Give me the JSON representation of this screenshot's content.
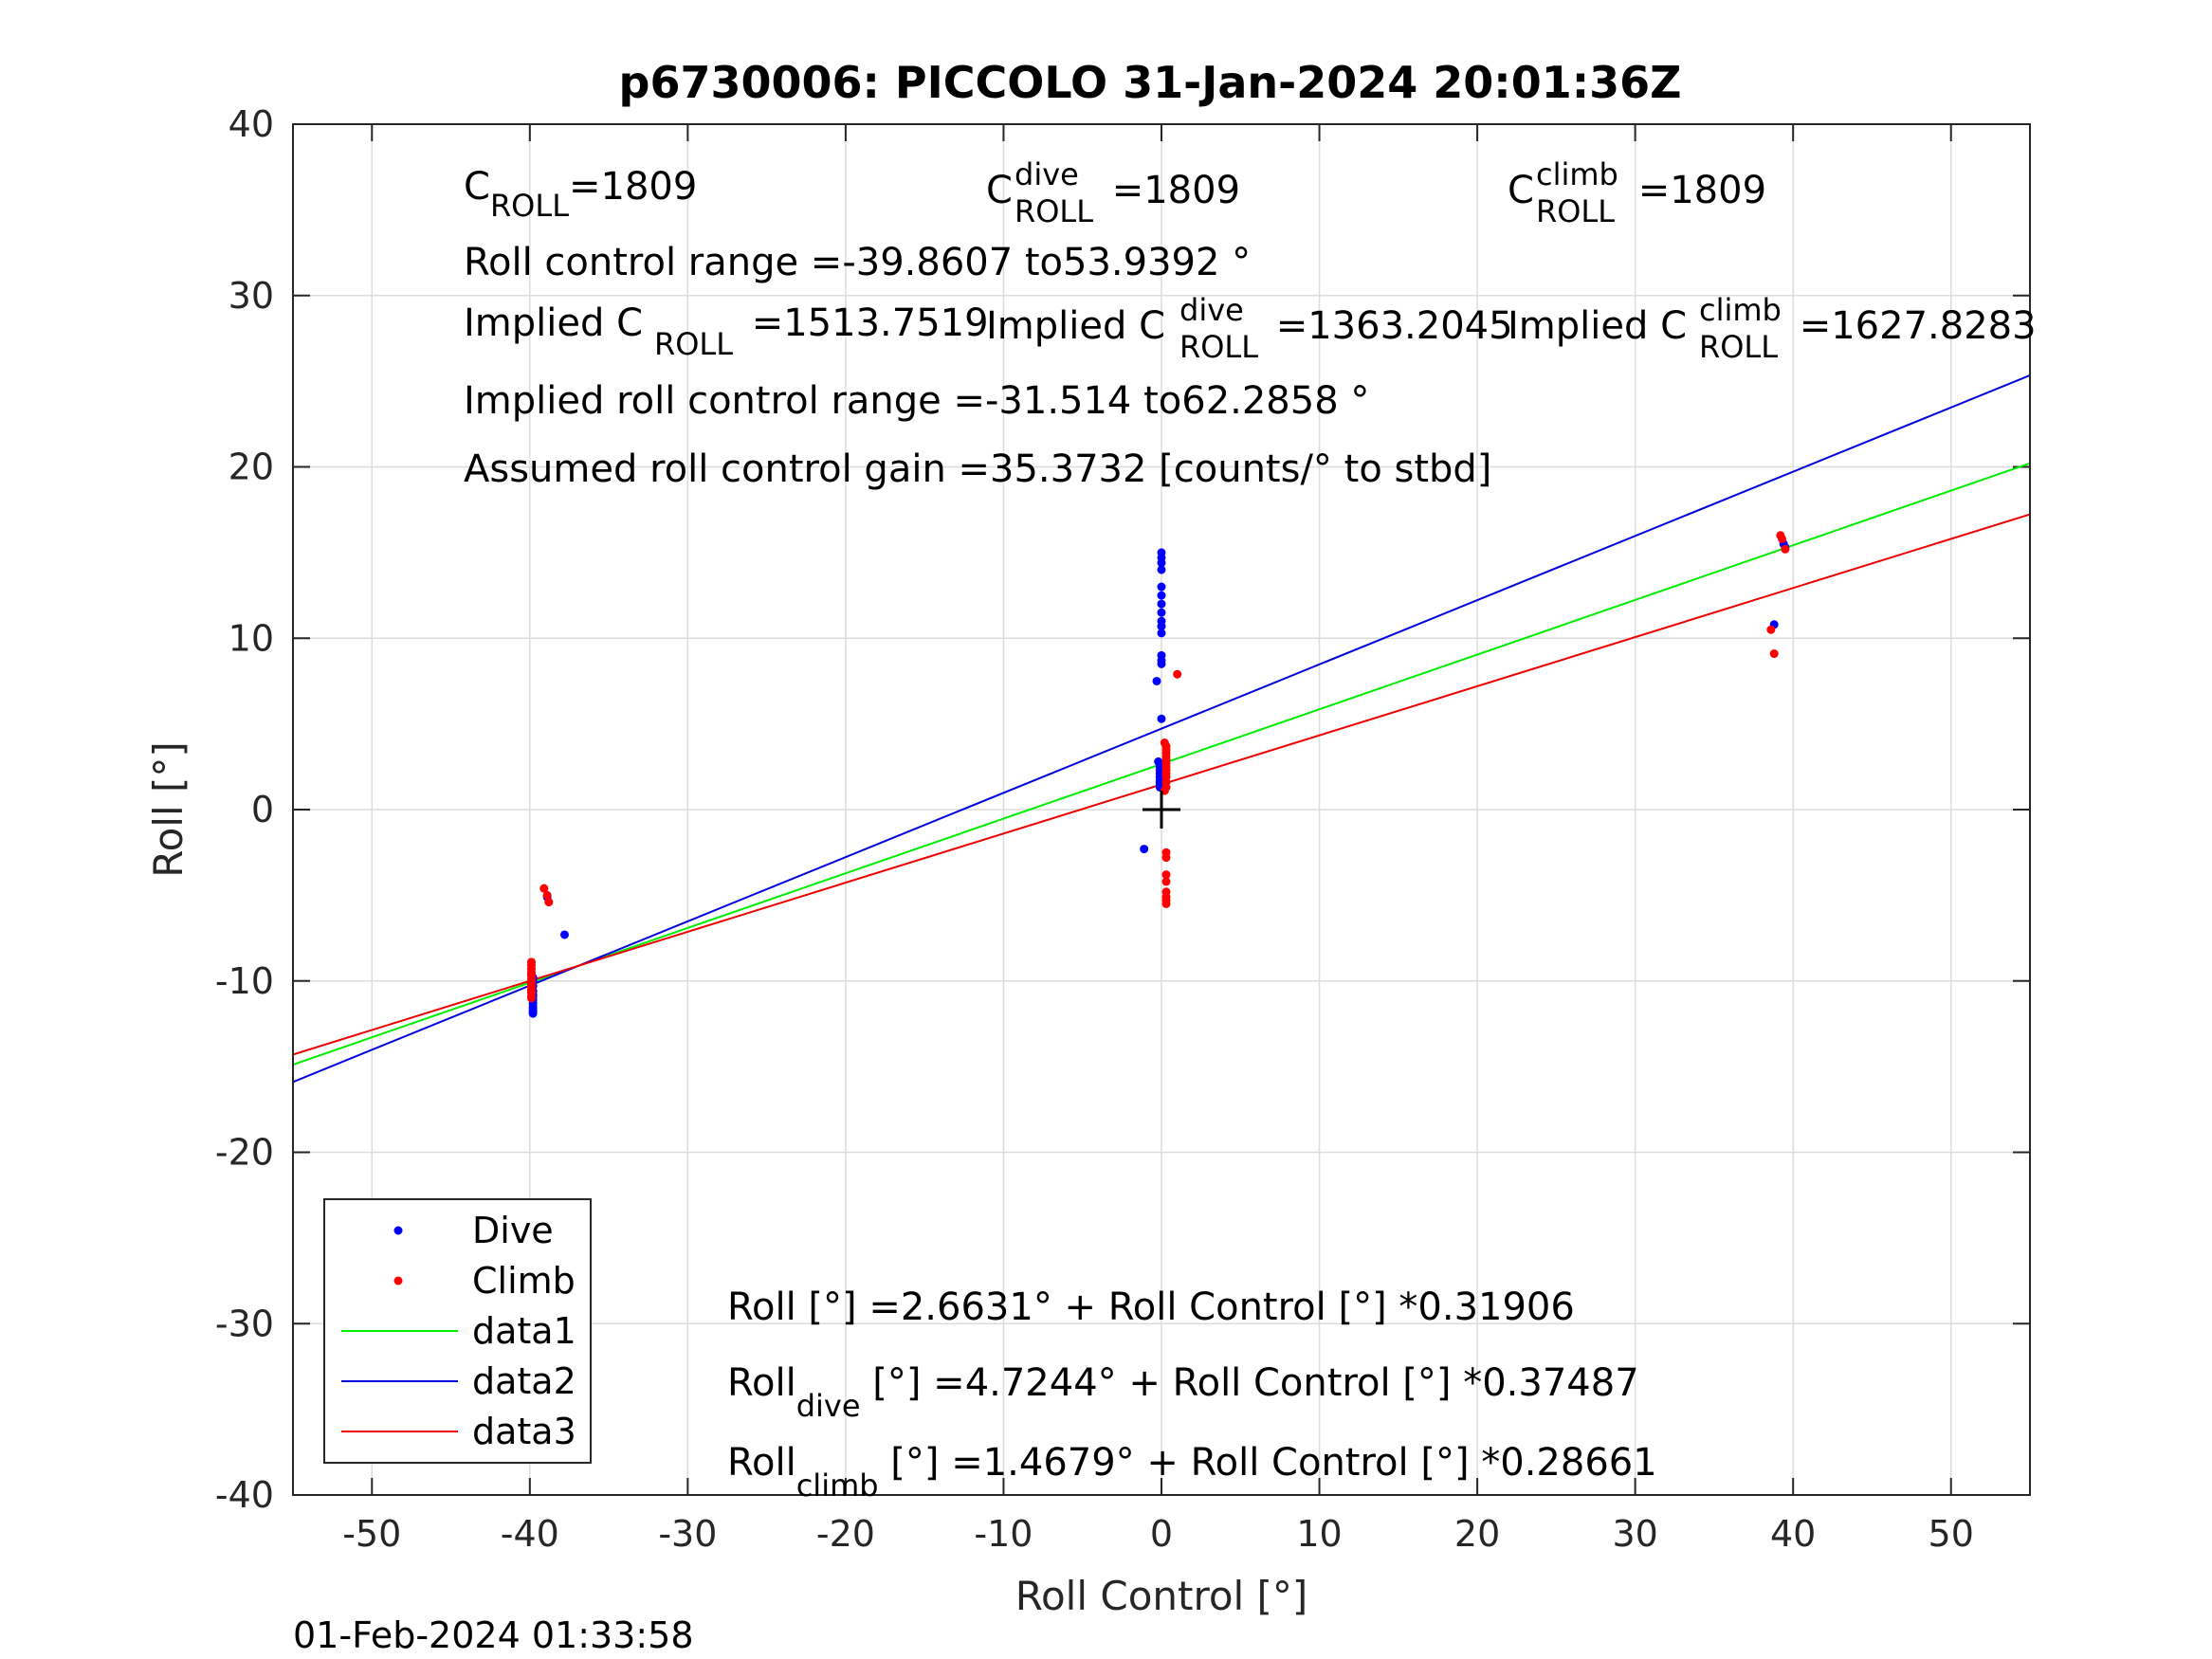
{
  "chart_data": {
    "type": "scatter",
    "title": "p6730006: PICCOLO 31-Jan-2024 20:01:36Z",
    "xlabel": "Roll Control [°]",
    "ylabel": "Roll [°]",
    "xlim": [
      -55,
      55
    ],
    "ylim": [
      -40,
      40
    ],
    "xticks": [
      -50,
      -40,
      -30,
      -20,
      -10,
      0,
      10,
      20,
      30,
      40,
      50
    ],
    "yticks": [
      -40,
      -30,
      -20,
      -10,
      0,
      10,
      20,
      30,
      40
    ],
    "grid": true,
    "legend_placement": "bottom-left",
    "series": [
      {
        "name": "Dive",
        "kind": "points",
        "color": "#0000ff",
        "x": [
          -39.8,
          -39.8,
          -39.8,
          -39.8,
          -39.8,
          -39.8,
          -39.8,
          -39.8,
          -39.8,
          -39.8,
          -39.8,
          -39.8,
          -39.8,
          -38.9,
          -37.8,
          0,
          0,
          0,
          0,
          0,
          0,
          0,
          0,
          0,
          0,
          0,
          0,
          0,
          0,
          -0.3,
          0,
          -0.2,
          -0.1,
          -0.1,
          -0.1,
          -0.1,
          -0.1,
          -0.1,
          -0.1,
          -0.1,
          -0.1,
          -1.1,
          38.8,
          39.4,
          39.5
        ],
        "y": [
          -10.0,
          -10.3,
          -10.6,
          -10.9,
          -11.1,
          -11.3,
          -11.5,
          -11.6,
          -11.7,
          -11.8,
          -11.9,
          -10.8,
          -9.8,
          -5.1,
          -7.3,
          15.0,
          14.7,
          14.4,
          14.0,
          13.0,
          12.5,
          12.0,
          11.5,
          11.0,
          10.7,
          10.3,
          9.0,
          8.7,
          8.5,
          7.5,
          5.3,
          2.8,
          2.5,
          2.3,
          2.1,
          1.9,
          1.7,
          1.6,
          1.5,
          1.4,
          1.3,
          -2.3,
          10.8,
          15.5,
          15.3
        ]
      },
      {
        "name": "Climb",
        "kind": "points",
        "color": "#ff0000",
        "x": [
          -39.9,
          -39.9,
          -39.9,
          -39.9,
          -39.9,
          -39.9,
          -39.9,
          -39.9,
          -39.9,
          -39.9,
          -39.9,
          -39.9,
          -39.9,
          -39.9,
          -39.9,
          -39.1,
          -38.9,
          -38.8,
          0.2,
          0.3,
          0.3,
          0.3,
          0.3,
          0.3,
          0.3,
          0.3,
          0.3,
          0.3,
          0.3,
          0.3,
          0.3,
          0.2,
          0.3,
          0.3,
          0.3,
          0.3,
          0.3,
          0.3,
          0.3,
          0.3,
          1.0,
          38.6,
          38.8,
          39.2,
          39.3,
          39.5
        ],
        "y": [
          -8.9,
          -9.1,
          -9.3,
          -9.5,
          -9.7,
          -9.9,
          -10.1,
          -10.3,
          -10.5,
          -10.7,
          -10.9,
          -11.0,
          -9.6,
          -10.2,
          -10.6,
          -4.6,
          -5.0,
          -5.4,
          3.9,
          3.7,
          3.5,
          3.3,
          3.1,
          2.9,
          2.7,
          2.5,
          2.3,
          2.1,
          1.9,
          1.6,
          1.3,
          1.1,
          -2.5,
          -2.8,
          -3.8,
          -4.2,
          -4.8,
          -5.1,
          -5.3,
          -5.5,
          7.9,
          10.5,
          9.1,
          16.0,
          15.8,
          15.2
        ]
      },
      {
        "name": "data1",
        "kind": "line",
        "color": "#00ee00",
        "intercept": 2.6631,
        "slope": 0.31906
      },
      {
        "name": "data2",
        "kind": "line",
        "color": "#0000dd",
        "intercept": 4.7244,
        "slope": 0.37487
      },
      {
        "name": "data3",
        "kind": "line",
        "color": "#ee0000",
        "intercept": 1.4679,
        "slope": 0.28661
      }
    ],
    "marker": {
      "x": 0,
      "y": 0,
      "shape": "plus"
    },
    "annotations": {
      "c_roll": {
        "main": "C",
        "sub": "ROLL",
        "rest": "=1809"
      },
      "c_roll_dive": {
        "main": "C",
        "sup": "dive",
        "sub": "ROLL",
        "rest": " =1809"
      },
      "c_roll_climb": {
        "main": "C",
        "sup": "climb",
        "sub": "ROLL",
        "rest": " =1809"
      },
      "range": "Roll control range =-39.8607 to53.9392 °",
      "implied_c": {
        "pre": "Implied C",
        "sub": "ROLL",
        "rest": " =1513.7519"
      },
      "implied_c_dive": {
        "pre": "Implied C",
        "sup": "dive",
        "sub": "ROLL",
        "rest": " =1363.2045"
      },
      "implied_c_climb": {
        "pre": "Implied C",
        "sup": "climb",
        "sub": "ROLL",
        "rest": " =1627.8283"
      },
      "implied_range": "Implied roll control range =-31.514 to62.2858 °",
      "gain": "Assumed roll control gain =35.3732 [counts/° to stbd]",
      "eq_all": "Roll [°] =2.6631° + Roll Control [°] *0.31906",
      "eq_dive": {
        "pre": "Roll",
        "sub": "dive",
        "rest": " [°] =4.7244° + Roll Control [°] *0.37487"
      },
      "eq_climb": {
        "pre": "Roll",
        "sub": "climb",
        "rest": " [°] =1.4679° + Roll Control [°] *0.28661"
      }
    }
  },
  "footer_timestamp": "01-Feb-2024 01:33:58"
}
